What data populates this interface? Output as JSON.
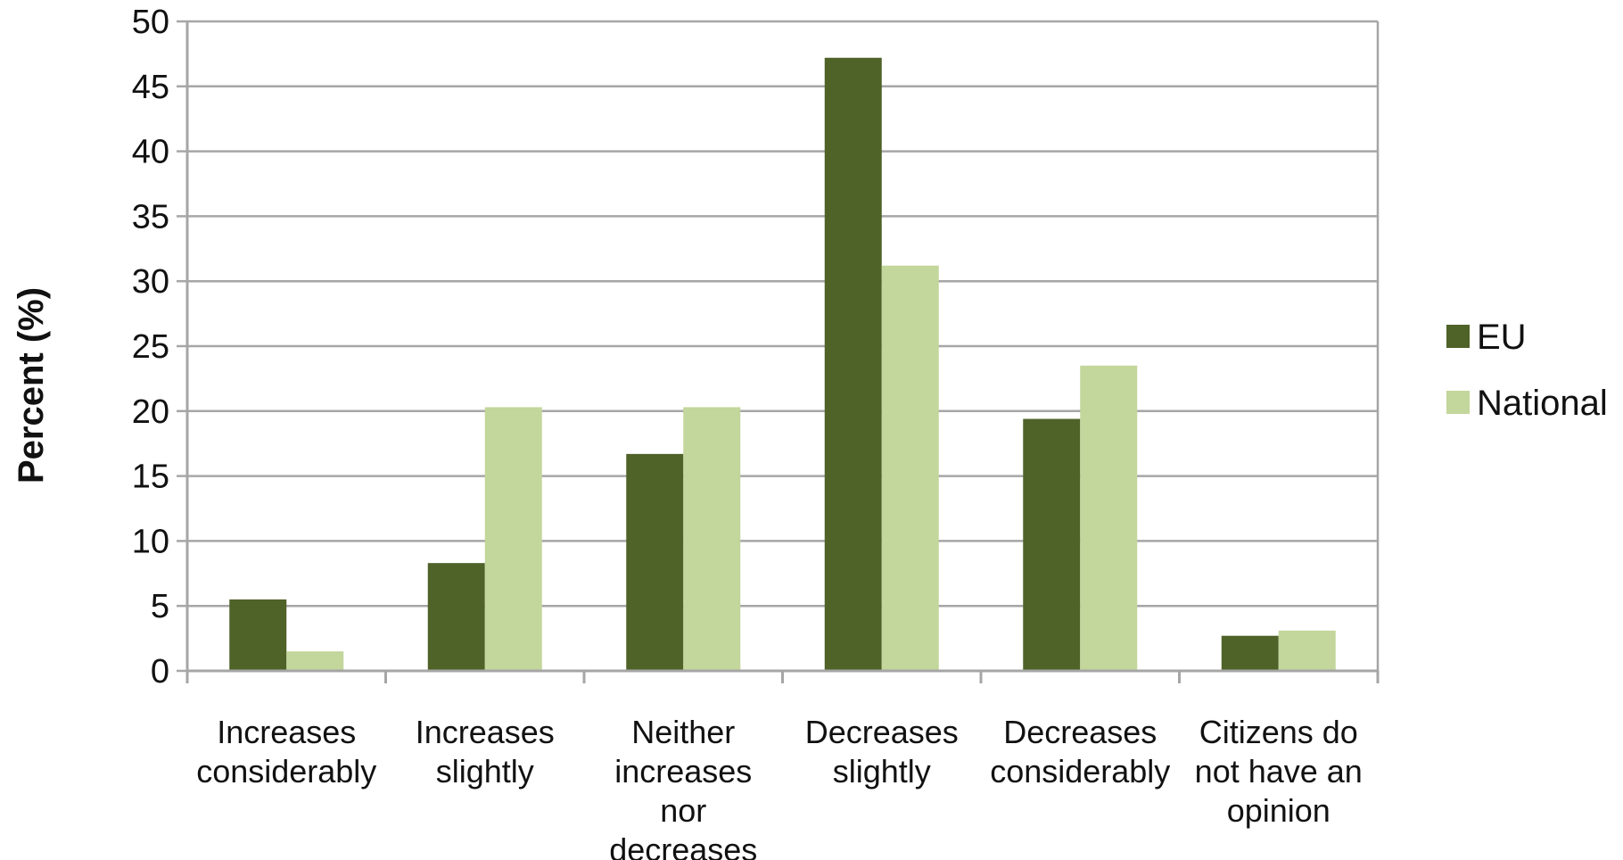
{
  "chart_data": {
    "type": "bar",
    "title": "",
    "xlabel": "",
    "ylabel": "Percent (%)",
    "ylim": [
      0,
      50
    ],
    "yticks": [
      0,
      5,
      10,
      15,
      20,
      25,
      30,
      35,
      40,
      45,
      50
    ],
    "grid": true,
    "legend_position": "right",
    "categories": [
      [
        "Increases",
        "considerably"
      ],
      [
        "Increases",
        "slightly"
      ],
      [
        "Neither",
        "increases",
        "nor",
        "decreases"
      ],
      [
        "Decreases",
        "slightly"
      ],
      [
        "Decreases",
        "considerably"
      ],
      [
        "Citizens do",
        "not have an",
        "opinion"
      ]
    ],
    "series": [
      {
        "name": "EU",
        "color": "#4f6228",
        "values": [
          5.5,
          8.3,
          16.7,
          47.2,
          19.4,
          2.7
        ]
      },
      {
        "name": "National",
        "color": "#c3d69b",
        "values": [
          1.5,
          20.3,
          20.3,
          31.2,
          23.5,
          3.1
        ]
      }
    ],
    "colors": {
      "grid": "#a6a6a6",
      "axis": "#a6a6a6",
      "text": "#111111"
    }
  }
}
